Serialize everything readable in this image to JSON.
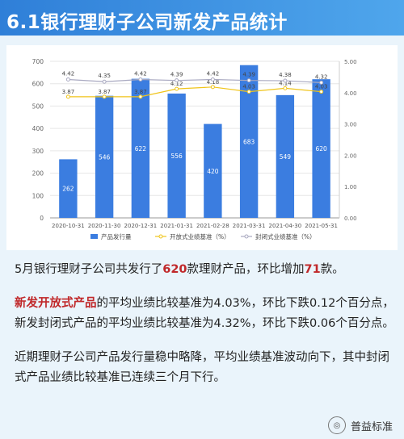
{
  "header": {
    "title": "6.1银行理财子公司新发产品统计"
  },
  "chart_data": {
    "type": "bar",
    "categories": [
      "2020-10-31",
      "2020-11-30",
      "2020-12-31",
      "2021-01-31",
      "2021-02-28",
      "2021-03-31",
      "2021-04-30",
      "2021-05-31"
    ],
    "series": [
      {
        "name": "产品发行量",
        "type": "bar",
        "axis": "left",
        "color": "#3b7de0",
        "values": [
          262,
          546,
          622,
          556,
          420,
          683,
          549,
          620
        ]
      },
      {
        "name": "开放式业绩基准（%）",
        "type": "line",
        "axis": "right",
        "color": "#f0c419",
        "values": [
          3.87,
          3.87,
          3.87,
          4.12,
          4.18,
          4.03,
          4.14,
          4.03
        ],
        "labels": [
          "3.87",
          "3.87",
          "3.87",
          "4.12",
          "4.18",
          "4.03",
          "4.14",
          "4.03"
        ]
      },
      {
        "name": "封闭式业绩基准（%）",
        "type": "line",
        "axis": "right",
        "color": "#a8a8c0",
        "values": [
          4.42,
          4.35,
          4.42,
          4.39,
          4.42,
          4.39,
          4.38,
          4.32
        ],
        "labels": [
          "4.42",
          "4.35",
          "4.42",
          "4.39",
          "4.42",
          "4.39",
          "4.38",
          "4.32"
        ]
      }
    ],
    "ylim": [
      0,
      700
    ],
    "yticks": [
      "0",
      "100",
      "200",
      "300",
      "400",
      "500",
      "600",
      "700"
    ],
    "y2lim": [
      0,
      5
    ],
    "y2ticks": [
      "0.00",
      "1.00",
      "2.00",
      "3.00",
      "4.00",
      "5.00"
    ],
    "grid": true,
    "legend_position": "bottom"
  },
  "summary": {
    "p1_a": "5月银行理财子公司共发行了",
    "p1_b": "620",
    "p1_c": "款理财产品，环比增加",
    "p1_d": "71",
    "p1_e": "款。",
    "p2_a": "新发开放式产品",
    "p2_b": "的平均业绩比较基准为4.03%，环比下跌0.12个百分点，新发封闭式产品的平均业绩比较基准为4.32%，环比下跌0.06个百分点。",
    "p3": "近期理财子公司产品发行量稳中略降，平均业绩基准波动向下，其中封闭式产品业绩比较基准已连续三个月下行。"
  },
  "badge": {
    "label": "普益标准"
  }
}
